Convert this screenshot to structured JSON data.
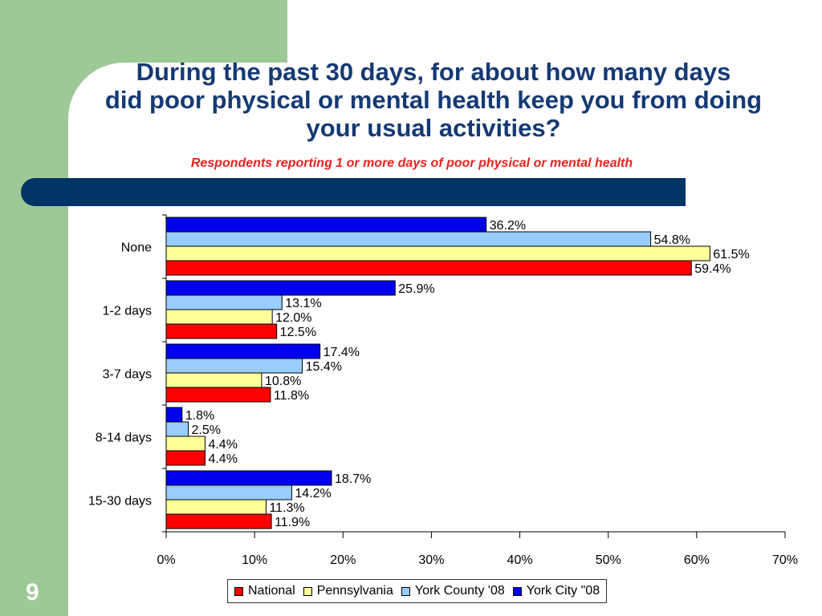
{
  "slide": {
    "title_line1": "During the past 30 days, for about how many days",
    "title_line2": "did poor physical or mental health keep you from doing",
    "title_line3": "your usual activities?",
    "subtitle": "Respondents reporting 1 or more days of poor physical or mental health",
    "page_number": "9"
  },
  "colors": {
    "green_strip": "#9cc995",
    "navy_bar": "#003466",
    "title": "#153a74",
    "subtitle": "#e8231f"
  },
  "chart_data": {
    "type": "bar",
    "orientation": "horizontal",
    "categories": [
      "None",
      "1-2 days",
      "3-7 days",
      "8-14 days",
      "15-30 days"
    ],
    "series": [
      {
        "name": "York City \"08",
        "color": "#0000ee",
        "values": [
          36.2,
          25.9,
          17.4,
          1.8,
          18.7
        ],
        "labels": [
          "36.2%",
          "25.9%",
          "17.4%",
          "1.8%",
          "18.7%"
        ]
      },
      {
        "name": "York County '08",
        "color": "#99ccff",
        "values": [
          54.8,
          13.1,
          15.4,
          2.5,
          14.2
        ],
        "labels": [
          "54.8%",
          "13.1%",
          "15.4%",
          "2.5%",
          "14.2%"
        ]
      },
      {
        "name": "Pennsylvania",
        "color": "#ffff99",
        "values": [
          61.5,
          12.0,
          10.8,
          4.4,
          11.3
        ],
        "labels": [
          "61.5%",
          "12.0%",
          "10.8%",
          "4.4%",
          "11.3%"
        ]
      },
      {
        "name": "National",
        "color": "#ff0000",
        "values": [
          59.4,
          12.5,
          11.8,
          4.4,
          11.9
        ],
        "labels": [
          "59.4%",
          "12.5%",
          "11.8%",
          "4.4%",
          "11.9%"
        ]
      }
    ],
    "x_ticks": [
      "0%",
      "10%",
      "20%",
      "30%",
      "40%",
      "50%",
      "60%",
      "70%"
    ],
    "xlim": [
      0,
      70
    ],
    "xlabel": "",
    "ylabel": "",
    "grid": false,
    "legend": {
      "position": "bottom",
      "order": [
        "National",
        "Pennsylvania",
        "York County '08",
        "York City \"08"
      ]
    }
  }
}
